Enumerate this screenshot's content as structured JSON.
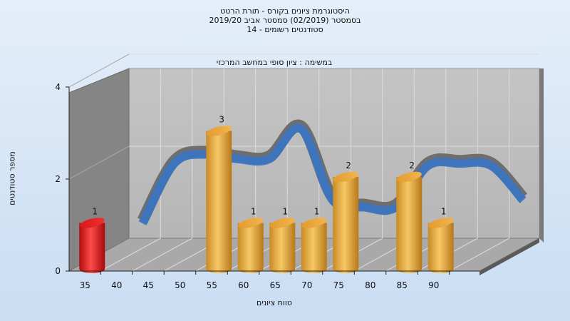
{
  "title_lines": [
    "היסטוגרמת ציונים בקורס - תורת הרטט",
    "בסמסטר  (02/2019)  סמסטר אביב 2019/20",
    "סטודנטים רשומים - 14"
  ],
  "task_label": "במשימה : ציון סופי במחשב המרכזי",
  "colors": {
    "bar_gold": "#e8a840",
    "bar_red": "#e02020",
    "curve_blue": "#3a74c0",
    "curve_gray": "#6e6e6e",
    "back_wall": "#bdbdbd",
    "side_wall": "#858585",
    "floor": "#a9a9a9"
  },
  "chart_data": {
    "type": "bar",
    "title": "היסטוגרמת ציונים בקורס - תורת הרטט",
    "subtitle": "במשימה : ציון סופי במחשב המרכזי",
    "xlabel": "טווח ציונים",
    "ylabel": "מספר סטודנטים",
    "x_ticks": [
      35,
      40,
      45,
      50,
      55,
      60,
      65,
      70,
      75,
      80,
      85,
      90
    ],
    "y_ticks": [
      0,
      2,
      4
    ],
    "ylim": [
      0,
      4
    ],
    "grid": true,
    "bars": [
      {
        "x": 35,
        "value": 1,
        "color": "red"
      },
      {
        "x": 55,
        "value": 3,
        "color": "gold"
      },
      {
        "x": 60,
        "value": 1,
        "color": "gold"
      },
      {
        "x": 65,
        "value": 1,
        "color": "gold"
      },
      {
        "x": 70,
        "value": 1,
        "color": "gold"
      },
      {
        "x": 75,
        "value": 2,
        "color": "gold"
      },
      {
        "x": 85,
        "value": 2,
        "color": "gold"
      },
      {
        "x": 90,
        "value": 1,
        "color": "gold"
      }
    ],
    "curve": {
      "x": [
        35,
        40,
        45,
        50,
        55,
        60,
        65,
        70,
        75,
        80,
        85,
        90,
        95
      ],
      "y": [
        0.6,
        1.9,
        2.1,
        2.0,
        2.0,
        2.65,
        1.1,
        0.95,
        0.95,
        1.85,
        1.9,
        1.85,
        1.1
      ]
    }
  }
}
